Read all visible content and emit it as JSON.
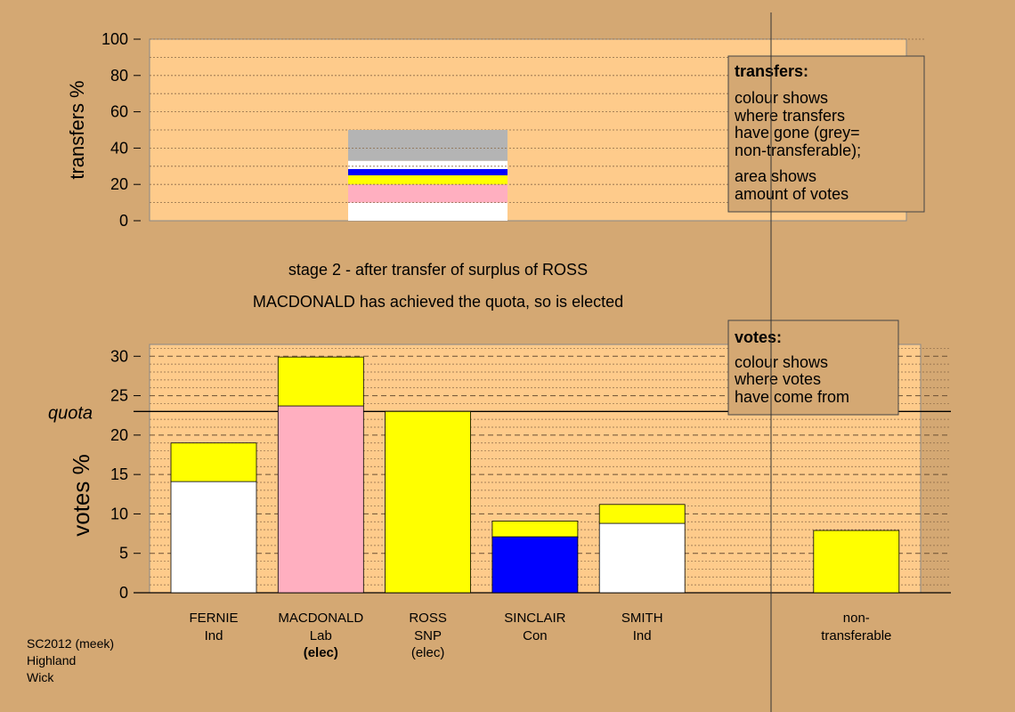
{
  "stage_caption": "stage 2 - after transfer of surplus of ROSS",
  "elected_caption": "MACDONALD has achieved the quota, so is elected",
  "footer": {
    "line1": "SC2012 (meek)",
    "line2": "Highland",
    "line3": "Wick"
  },
  "colors": {
    "background": "#d4a873",
    "plot": "#fecb8b",
    "Ind": "#ffffff",
    "Lab": "#ffafc0",
    "SNP": "#ffff00",
    "Con": "#0000ff",
    "non_transferable": "#b4b4b4"
  },
  "chart_data": [
    {
      "type": "bar",
      "stacked": true,
      "ylabel": "transfers %",
      "ylim": [
        0,
        100
      ],
      "yticks": [
        0,
        20,
        40,
        60,
        80,
        100
      ],
      "grid": true,
      "legend": {
        "title": "transfers:",
        "lines": [
          "colour shows",
          "where transfers",
          "have gone (grey=",
          "non-transferable);",
          "area shows",
          "amount of votes"
        ],
        "position": "top-right"
      },
      "bar": {
        "from": "ROSS",
        "segments": [
          {
            "destination": "FERNIE",
            "color": "#ffffff",
            "value": 10
          },
          {
            "destination": "MACDONALD",
            "color": "#ffafc0",
            "value": 10
          },
          {
            "destination": "ROSS",
            "color": "#ffff00",
            "value": 5
          },
          {
            "destination": "SINCLAIR",
            "color": "#0000ff",
            "value": 3.5
          },
          {
            "destination": "SMITH",
            "color": "#ffffff",
            "value": 4.5
          },
          {
            "destination": "non-transferable",
            "color": "#b4b4b4",
            "value": 17
          }
        ]
      }
    },
    {
      "type": "bar",
      "stacked": true,
      "ylabel": "votes %",
      "ylim": [
        0,
        31.5
      ],
      "yticks": [
        0,
        5,
        10,
        15,
        20,
        25,
        30
      ],
      "quota": 23,
      "quota_label": "quota",
      "grid": true,
      "legend": {
        "title": "votes:",
        "lines": [
          "colour shows",
          "where votes",
          "have come from"
        ],
        "position": "top-right"
      },
      "categories": [
        {
          "name": "FERNIE",
          "party": "Ind",
          "status": "",
          "bold": false
        },
        {
          "name": "MACDONALD",
          "party": "Lab",
          "status": "(elec)",
          "bold": true
        },
        {
          "name": "ROSS",
          "party": "SNP",
          "status": "(elec)",
          "bold": false
        },
        {
          "name": "SINCLAIR",
          "party": "Con",
          "status": "",
          "bold": false
        },
        {
          "name": "SMITH",
          "party": "Ind",
          "status": "",
          "bold": false
        },
        {
          "name": "",
          "party": "",
          "status": "",
          "bold": false
        },
        {
          "name": "non-",
          "party": "transferable",
          "status": "",
          "bold": false
        }
      ],
      "bars": [
        {
          "segments": [
            {
              "value": 14.1,
              "color": "#ffffff"
            },
            {
              "value": 4.9,
              "color": "#ffff00"
            }
          ]
        },
        {
          "segments": [
            {
              "value": 23.7,
              "color": "#ffafc0"
            },
            {
              "value": 6.2,
              "color": "#ffff00"
            }
          ]
        },
        {
          "segments": [
            {
              "value": 23.0,
              "color": "#ffff00"
            }
          ]
        },
        {
          "segments": [
            {
              "value": 7.1,
              "color": "#0000ff"
            },
            {
              "value": 2.0,
              "color": "#ffff00"
            }
          ]
        },
        {
          "segments": [
            {
              "value": 8.8,
              "color": "#ffffff"
            },
            {
              "value": 2.4,
              "color": "#ffff00"
            }
          ]
        },
        null,
        {
          "segments": [
            {
              "value": 7.9,
              "color": "#ffff00"
            }
          ]
        }
      ]
    }
  ]
}
